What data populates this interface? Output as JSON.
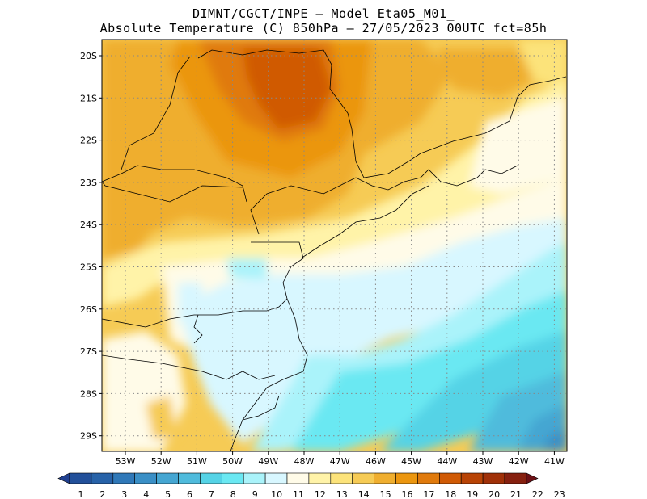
{
  "title_line1": "DIMNT/CGCT/INPE –  Model Eta05_M01_",
  "title_line2": "Absolute Temperature (C) 850hPa –  27/05/2023 00UTC fct=85h",
  "map": {
    "lat_labels": [
      "20S",
      "21S",
      "22S",
      "23S",
      "24S",
      "25S",
      "26S",
      "27S",
      "28S",
      "29S"
    ],
    "lon_labels": [
      "53W",
      "52W",
      "51W",
      "50W",
      "49W",
      "48W",
      "47W",
      "46W",
      "45W",
      "44W",
      "43W",
      "42W",
      "41W"
    ],
    "grid": "dotted"
  },
  "colorbar": {
    "labels": [
      "1",
      "2",
      "3",
      "4",
      "5",
      "6",
      "7",
      "8",
      "9",
      "10",
      "11",
      "12",
      "13",
      "14",
      "15",
      "16",
      "17",
      "18",
      "19",
      "20",
      "21",
      "22",
      "23"
    ],
    "colors": [
      "#1f3f8f",
      "#22509a",
      "#2762a8",
      "#2f78b8",
      "#3a8fc6",
      "#45a6d2",
      "#4fbbdc",
      "#55d3e6",
      "#6ae8f2",
      "#aaf3fa",
      "#d8f7ff",
      "#fffbe8",
      "#fff3a8",
      "#fce37a",
      "#f6cb55",
      "#efae2f",
      "#eb960f",
      "#e07a0c",
      "#d05a05",
      "#b84305",
      "#a03008",
      "#86200f",
      "#6b1015"
    ]
  }
}
